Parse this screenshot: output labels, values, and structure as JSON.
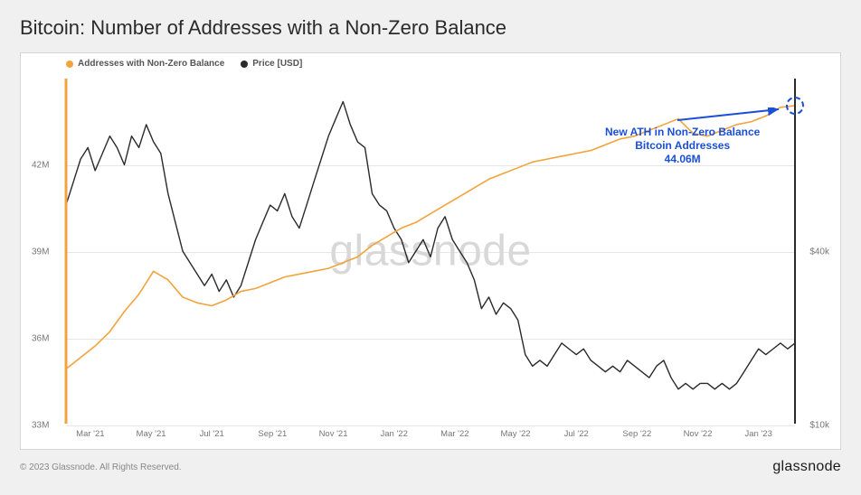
{
  "title": "Bitcoin: Number of Addresses with a Non-Zero Balance",
  "legend": {
    "series1": {
      "label": "Addresses with Non-Zero Balance",
      "color": "#f2a33c"
    },
    "series2": {
      "label": "Price [USD]",
      "color": "#2a2a2a"
    }
  },
  "watermark": "glassnode",
  "copyright": "© 2023 Glassnode. All Rights Reserved.",
  "brand": "glassnode",
  "annotation": {
    "line1": "New ATH in Non-Zero Balance",
    "line2": "Bitcoin Addresses",
    "line3": "44.06M",
    "color": "#1a4fd6"
  },
  "chart": {
    "type": "line-dual-axis",
    "background_color": "#ffffff",
    "grid_color": "#e6e6e6",
    "axis_label_color": "#777777",
    "axis_fontsize": 10,
    "x_ticks": [
      "Mar '21",
      "May '21",
      "Jul '21",
      "Sep '21",
      "Nov '21",
      "Jan '22",
      "Mar '22",
      "May '22",
      "Jul '22",
      "Sep '22",
      "Nov '22",
      "Jan '23"
    ],
    "left_axis": {
      "label_suffix": "M",
      "ticks": [
        33,
        36,
        39,
        42
      ],
      "min": 33,
      "max": 45
    },
    "right_axis": {
      "label_prefix": "$",
      "label_suffix": "k",
      "ticks": [
        10,
        40
      ],
      "min": 10,
      "max": 70,
      "scale": "linear"
    },
    "series": {
      "addresses": {
        "color": "#f2a33c",
        "line_width": 1.6,
        "data": [
          [
            0.0,
            34.9
          ],
          [
            0.02,
            35.3
          ],
          [
            0.04,
            35.7
          ],
          [
            0.06,
            36.2
          ],
          [
            0.08,
            36.9
          ],
          [
            0.1,
            37.5
          ],
          [
            0.12,
            38.3
          ],
          [
            0.14,
            38.0
          ],
          [
            0.16,
            37.4
          ],
          [
            0.18,
            37.2
          ],
          [
            0.2,
            37.1
          ],
          [
            0.22,
            37.3
          ],
          [
            0.24,
            37.6
          ],
          [
            0.26,
            37.7
          ],
          [
            0.28,
            37.9
          ],
          [
            0.3,
            38.1
          ],
          [
            0.32,
            38.2
          ],
          [
            0.34,
            38.3
          ],
          [
            0.36,
            38.4
          ],
          [
            0.38,
            38.6
          ],
          [
            0.4,
            38.8
          ],
          [
            0.42,
            39.2
          ],
          [
            0.44,
            39.5
          ],
          [
            0.46,
            39.8
          ],
          [
            0.48,
            40.0
          ],
          [
            0.5,
            40.3
          ],
          [
            0.52,
            40.6
          ],
          [
            0.54,
            40.9
          ],
          [
            0.56,
            41.2
          ],
          [
            0.58,
            41.5
          ],
          [
            0.6,
            41.7
          ],
          [
            0.62,
            41.9
          ],
          [
            0.64,
            42.1
          ],
          [
            0.66,
            42.2
          ],
          [
            0.68,
            42.3
          ],
          [
            0.7,
            42.4
          ],
          [
            0.72,
            42.5
          ],
          [
            0.74,
            42.7
          ],
          [
            0.76,
            42.9
          ],
          [
            0.78,
            43.0
          ],
          [
            0.8,
            43.2
          ],
          [
            0.82,
            43.4
          ],
          [
            0.84,
            43.6
          ],
          [
            0.86,
            43.1
          ],
          [
            0.88,
            43.0
          ],
          [
            0.9,
            43.2
          ],
          [
            0.92,
            43.4
          ],
          [
            0.94,
            43.5
          ],
          [
            0.96,
            43.7
          ],
          [
            0.98,
            44.0
          ],
          [
            1.0,
            44.06
          ]
        ]
      },
      "price": {
        "color": "#2a2a2a",
        "line_width": 1.4,
        "data": [
          [
            0.0,
            48
          ],
          [
            0.01,
            52
          ],
          [
            0.02,
            56
          ],
          [
            0.03,
            58
          ],
          [
            0.04,
            54
          ],
          [
            0.05,
            57
          ],
          [
            0.06,
            60
          ],
          [
            0.07,
            58
          ],
          [
            0.08,
            55
          ],
          [
            0.09,
            60
          ],
          [
            0.1,
            58
          ],
          [
            0.11,
            62
          ],
          [
            0.12,
            59
          ],
          [
            0.13,
            57
          ],
          [
            0.14,
            50
          ],
          [
            0.15,
            45
          ],
          [
            0.16,
            40
          ],
          [
            0.17,
            38
          ],
          [
            0.18,
            36
          ],
          [
            0.19,
            34
          ],
          [
            0.2,
            36
          ],
          [
            0.21,
            33
          ],
          [
            0.22,
            35
          ],
          [
            0.23,
            32
          ],
          [
            0.24,
            34
          ],
          [
            0.25,
            38
          ],
          [
            0.26,
            42
          ],
          [
            0.27,
            45
          ],
          [
            0.28,
            48
          ],
          [
            0.29,
            47
          ],
          [
            0.3,
            50
          ],
          [
            0.31,
            46
          ],
          [
            0.32,
            44
          ],
          [
            0.33,
            48
          ],
          [
            0.34,
            52
          ],
          [
            0.35,
            56
          ],
          [
            0.36,
            60
          ],
          [
            0.37,
            63
          ],
          [
            0.38,
            66
          ],
          [
            0.39,
            62
          ],
          [
            0.4,
            59
          ],
          [
            0.41,
            58
          ],
          [
            0.42,
            50
          ],
          [
            0.43,
            48
          ],
          [
            0.44,
            47
          ],
          [
            0.45,
            44
          ],
          [
            0.46,
            42
          ],
          [
            0.47,
            38
          ],
          [
            0.48,
            40
          ],
          [
            0.49,
            42
          ],
          [
            0.5,
            39
          ],
          [
            0.51,
            44
          ],
          [
            0.52,
            46
          ],
          [
            0.53,
            42
          ],
          [
            0.54,
            40
          ],
          [
            0.55,
            38
          ],
          [
            0.56,
            35
          ],
          [
            0.57,
            30
          ],
          [
            0.58,
            32
          ],
          [
            0.59,
            29
          ],
          [
            0.6,
            31
          ],
          [
            0.61,
            30
          ],
          [
            0.62,
            28
          ],
          [
            0.63,
            22
          ],
          [
            0.64,
            20
          ],
          [
            0.65,
            21
          ],
          [
            0.66,
            20
          ],
          [
            0.67,
            22
          ],
          [
            0.68,
            24
          ],
          [
            0.69,
            23
          ],
          [
            0.7,
            22
          ],
          [
            0.71,
            23
          ],
          [
            0.72,
            21
          ],
          [
            0.73,
            20
          ],
          [
            0.74,
            19
          ],
          [
            0.75,
            20
          ],
          [
            0.76,
            19
          ],
          [
            0.77,
            21
          ],
          [
            0.78,
            20
          ],
          [
            0.79,
            19
          ],
          [
            0.8,
            18
          ],
          [
            0.81,
            20
          ],
          [
            0.82,
            21
          ],
          [
            0.83,
            18
          ],
          [
            0.84,
            16
          ],
          [
            0.85,
            17
          ],
          [
            0.86,
            16
          ],
          [
            0.87,
            17
          ],
          [
            0.88,
            17
          ],
          [
            0.89,
            16
          ],
          [
            0.9,
            17
          ],
          [
            0.91,
            16
          ],
          [
            0.92,
            17
          ],
          [
            0.93,
            19
          ],
          [
            0.94,
            21
          ],
          [
            0.95,
            23
          ],
          [
            0.96,
            22
          ],
          [
            0.97,
            23
          ],
          [
            0.98,
            24
          ],
          [
            0.99,
            23
          ],
          [
            1.0,
            24
          ]
        ]
      }
    }
  }
}
